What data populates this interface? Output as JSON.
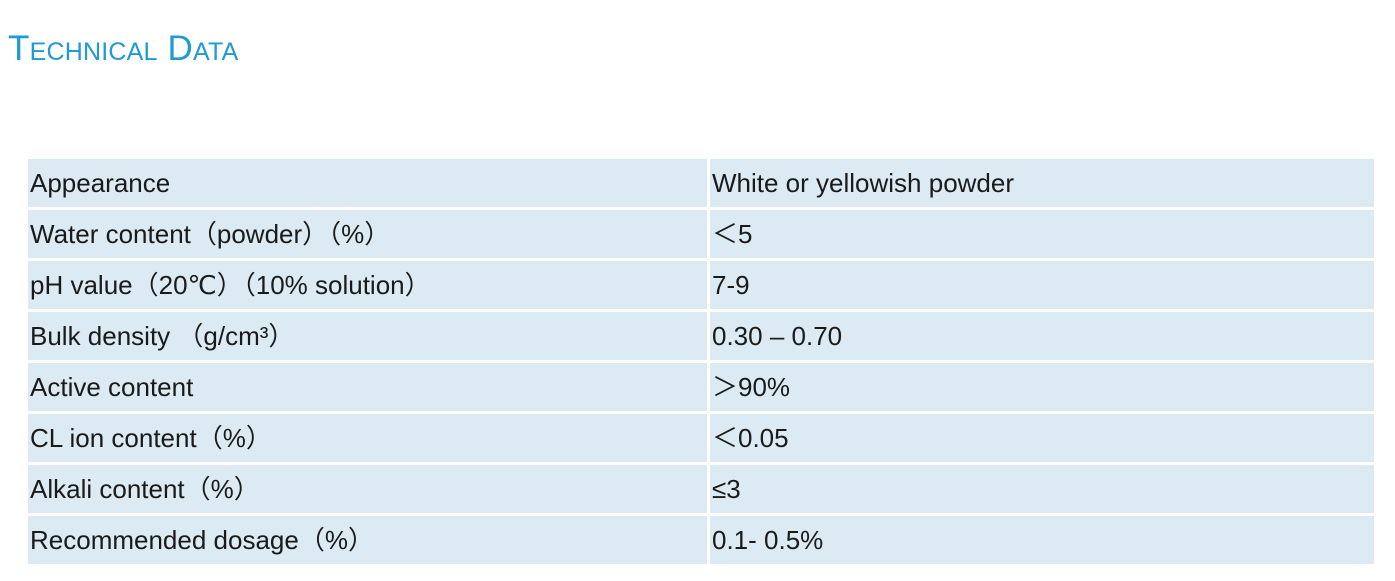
{
  "page": {
    "title": "Technical Data"
  },
  "table": {
    "rows": [
      {
        "property": "Appearance",
        "value": "White or yellowish powder"
      },
      {
        "property": "Water content（powder）（%）",
        "value": "＜5"
      },
      {
        "property": "pH value（20℃）（10% solution）",
        "value": "7-9"
      },
      {
        "property": "Bulk density （g/cm³）",
        "value": "0.30 – 0.70"
      },
      {
        "property": "Active content",
        "value": "＞90%"
      },
      {
        "property": "CL ion content（%）",
        "value": "＜0.05"
      },
      {
        "property": "Alkali content（%）",
        "value": "≤3"
      },
      {
        "property": "Recommended dosage（%）",
        "value": "0.1- 0.5%"
      }
    ]
  },
  "colors": {
    "title": "#1f9ad6",
    "row_background": "#dcebf3",
    "text": "#1a1a1a"
  }
}
